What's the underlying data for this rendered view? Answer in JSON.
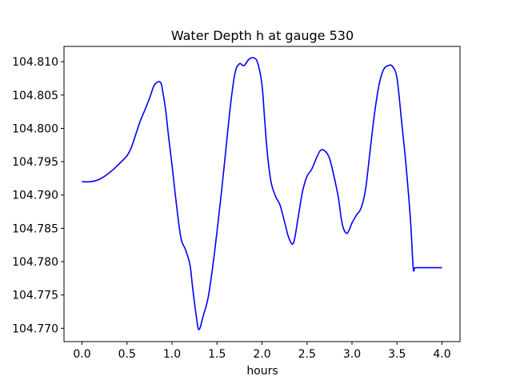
{
  "chart_data": {
    "type": "line",
    "title": "Water Depth h at gauge 530",
    "xlabel": "hours",
    "ylabel": "",
    "xlim": [
      -0.2,
      4.2
    ],
    "ylim": [
      104.768,
      104.8123
    ],
    "grid": false,
    "x_ticks": [
      0.0,
      0.5,
      1.0,
      1.5,
      2.0,
      2.5,
      3.0,
      3.5,
      4.0
    ],
    "x_tick_labels": [
      "0.0",
      "0.5",
      "1.0",
      "1.5",
      "2.0",
      "2.5",
      "3.0",
      "3.5",
      "4.0"
    ],
    "y_ticks": [
      104.77,
      104.775,
      104.78,
      104.785,
      104.79,
      104.795,
      104.8,
      104.805,
      104.81
    ],
    "y_tick_labels": [
      "104.770",
      "104.775",
      "104.780",
      "104.785",
      "104.790",
      "104.795",
      "104.800",
      "104.805",
      "104.810"
    ],
    "series": [
      {
        "color": "#0000ff",
        "x": [
          0.0,
          0.1,
          0.2,
          0.3,
          0.4,
          0.5,
          0.55,
          0.6,
          0.65,
          0.7,
          0.75,
          0.8,
          0.85,
          0.88,
          0.9,
          0.93,
          0.96,
          1.0,
          1.05,
          1.1,
          1.15,
          1.2,
          1.23,
          1.27,
          1.3,
          1.35,
          1.4,
          1.45,
          1.5,
          1.55,
          1.6,
          1.65,
          1.7,
          1.75,
          1.8,
          1.85,
          1.9,
          1.95,
          2.0,
          2.03,
          2.06,
          2.1,
          2.15,
          2.2,
          2.25,
          2.3,
          2.35,
          2.4,
          2.45,
          2.5,
          2.55,
          2.6,
          2.65,
          2.7,
          2.75,
          2.8,
          2.85,
          2.88,
          2.91,
          2.95,
          3.0,
          3.05,
          3.1,
          3.15,
          3.2,
          3.25,
          3.3,
          3.35,
          3.4,
          3.45,
          3.5,
          3.55,
          3.6,
          3.65,
          3.68,
          3.7,
          3.75,
          3.8,
          3.85,
          3.9,
          3.95,
          4.0
        ],
        "y": [
          104.792,
          104.792,
          104.7924,
          104.7933,
          104.7945,
          104.7959,
          104.7972,
          104.7992,
          104.8012,
          104.8028,
          104.8045,
          104.8064,
          104.807,
          104.8067,
          104.8053,
          104.8027,
          104.799,
          104.7945,
          104.7885,
          104.7835,
          104.7818,
          104.7795,
          104.776,
          104.7718,
          104.7698,
          104.772,
          104.7745,
          104.779,
          104.7845,
          104.7905,
          104.797,
          104.8035,
          104.8083,
          104.8097,
          104.8094,
          104.8103,
          104.8106,
          104.8099,
          104.8065,
          104.8012,
          104.7962,
          104.792,
          104.7898,
          104.7885,
          104.786,
          104.7835,
          104.7828,
          104.7865,
          104.7905,
          104.7928,
          104.7938,
          104.7954,
          104.7967,
          104.7966,
          104.7955,
          104.7928,
          104.7895,
          104.7865,
          104.7848,
          104.7843,
          104.7858,
          104.787,
          104.788,
          104.7908,
          104.7965,
          104.8022,
          104.8065,
          104.8088,
          104.8094,
          104.8093,
          104.8075,
          104.8012,
          104.7945,
          104.7862,
          104.7791,
          104.7791,
          104.7791,
          104.7791,
          104.7791,
          104.7791,
          104.7791,
          104.7791
        ]
      }
    ]
  }
}
